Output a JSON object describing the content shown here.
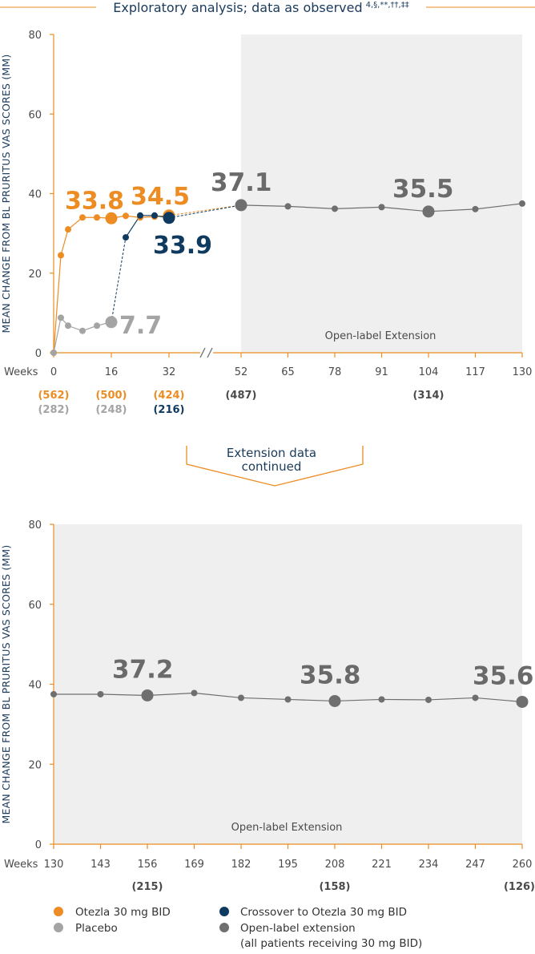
{
  "colors": {
    "otezla": "#ec8c22",
    "placebo": "#a4a4a4",
    "crossover": "#0f3a5f",
    "ole": "#6f6f6f",
    "ole_bg": "#efefef",
    "axis": "#ec8c22",
    "navy": "#1a3a5c"
  },
  "header": {
    "title": "Exploratory analysis; data as observed",
    "superscript": "4,§,**,††,‡‡"
  },
  "transition": {
    "line1": "Extension data",
    "line2": "continued"
  },
  "chart_data": [
    {
      "type": "line",
      "ylabel": "MEAN CHANGE FROM BL PRURITUS VAS SCORES (MM)",
      "xlabel": "Weeks",
      "ylim": [
        0,
        80
      ],
      "yticks": [
        "0",
        "20",
        "40",
        "60",
        "80"
      ],
      "xticks": [
        "0",
        "16",
        "32",
        "52",
        "65",
        "78",
        "91",
        "104",
        "117",
        "130"
      ],
      "axis_break": "between 32 and 52",
      "region_label": "Open-label Extension",
      "series": [
        {
          "name": "Otezla 30 mg BID",
          "x": [
            0,
            2,
            4,
            8,
            12,
            16,
            20,
            24,
            28,
            32
          ],
          "y": [
            0,
            24.5,
            31,
            34,
            34,
            33.8,
            34.4,
            34,
            34.2,
            34.5
          ]
        },
        {
          "name": "Placebo",
          "x": [
            0,
            2,
            4,
            8,
            12,
            16
          ],
          "y": [
            0,
            8.8,
            6.8,
            5.5,
            6.8,
            7.7
          ]
        },
        {
          "name": "Crossover to Otezla 30 mg BID",
          "x": [
            16,
            20,
            24,
            28,
            32
          ],
          "y": [
            7.7,
            29,
            34.5,
            34.5,
            33.9
          ]
        },
        {
          "name": "Open-label extension (all patients receiving 30 mg BID)",
          "x": [
            52,
            65,
            78,
            91,
            104,
            117,
            130
          ],
          "y": [
            37.1,
            36.8,
            36.2,
            36.6,
            35.5,
            36.1,
            37.5
          ]
        }
      ],
      "callouts": [
        {
          "text": "33.8",
          "series": "Otezla 30 mg BID",
          "x": 16,
          "y": 33.8
        },
        {
          "text": "34.5",
          "series": "Otezla 30 mg BID",
          "x": 32,
          "y": 34.5
        },
        {
          "text": "33.9",
          "series": "Crossover to Otezla 30 mg BID",
          "x": 32,
          "y": 33.9
        },
        {
          "text": "7.7",
          "series": "Placebo",
          "x": 16,
          "y": 7.7
        },
        {
          "text": "37.1",
          "series": "Open-label extension (all patients receiving 30 mg BID)",
          "x": 52,
          "y": 37.1
        },
        {
          "text": "35.5",
          "series": "Open-label extension (all patients receiving 30 mg BID)",
          "x": 104,
          "y": 35.5
        }
      ],
      "n_labels": [
        {
          "text": "(562)",
          "x": 0,
          "row": 1,
          "series": "Otezla 30 mg BID"
        },
        {
          "text": "(500)",
          "x": 16,
          "row": 1,
          "series": "Otezla 30 mg BID"
        },
        {
          "text": "(424)",
          "x": 32,
          "row": 1,
          "series": "Otezla 30 mg BID"
        },
        {
          "text": "(487)",
          "x": 52,
          "row": 1,
          "series": "Open-label extension (all patients receiving 30 mg BID)"
        },
        {
          "text": "(314)",
          "x": 104,
          "row": 1,
          "series": "Open-label extension (all patients receiving 30 mg BID)"
        },
        {
          "text": "(282)",
          "x": 0,
          "row": 2,
          "series": "Placebo"
        },
        {
          "text": "(248)",
          "x": 16,
          "row": 2,
          "series": "Placebo"
        },
        {
          "text": "(216)",
          "x": 32,
          "row": 2,
          "series": "Crossover to Otezla 30 mg BID"
        }
      ]
    },
    {
      "type": "line",
      "ylabel": "MEAN CHANGE FROM BL PRURITUS VAS SCORES (MM)",
      "xlabel": "Weeks",
      "ylim": [
        0,
        80
      ],
      "yticks": [
        "0",
        "20",
        "40",
        "60",
        "80"
      ],
      "xticks": [
        "130",
        "143",
        "156",
        "169",
        "182",
        "195",
        "208",
        "221",
        "234",
        "247",
        "260"
      ],
      "region_label": "Open-label Extension",
      "series": [
        {
          "name": "Open-label extension (all patients receiving 30 mg BID)",
          "x": [
            130,
            143,
            156,
            169,
            182,
            195,
            208,
            221,
            234,
            247,
            260
          ],
          "y": [
            37.5,
            37.5,
            37.2,
            37.8,
            36.6,
            36.2,
            35.8,
            36.2,
            36.1,
            36.6,
            35.6
          ]
        }
      ],
      "callouts": [
        {
          "text": "37.2",
          "series": "Open-label extension (all patients receiving 30 mg BID)",
          "x": 156,
          "y": 37.2
        },
        {
          "text": "35.8",
          "series": "Open-label extension (all patients receiving 30 mg BID)",
          "x": 208,
          "y": 35.8
        },
        {
          "text": "35.6",
          "series": "Open-label extension (all patients receiving 30 mg BID)",
          "x": 260,
          "y": 35.6
        }
      ],
      "n_labels": [
        {
          "text": "(215)",
          "x": 156,
          "row": 1,
          "series": "Open-label extension (all patients receiving 30 mg BID)"
        },
        {
          "text": "(158)",
          "x": 208,
          "row": 1,
          "series": "Open-label extension (all patients receiving 30 mg BID)"
        },
        {
          "text": "(126)",
          "x": 260,
          "row": 1,
          "series": "Open-label extension (all patients receiving 30 mg BID)"
        }
      ]
    }
  ],
  "legend": {
    "items": [
      {
        "label": "Otezla 30 mg BID",
        "color": "#ec8c22"
      },
      {
        "label": "Placebo",
        "color": "#a4a4a4"
      },
      {
        "label": "Crossover to Otezla 30 mg BID",
        "color": "#0f3a5f"
      },
      {
        "label": "Open-label extension",
        "label2": "(all patients receiving 30 mg BID)",
        "color": "#6f6f6f"
      }
    ]
  }
}
